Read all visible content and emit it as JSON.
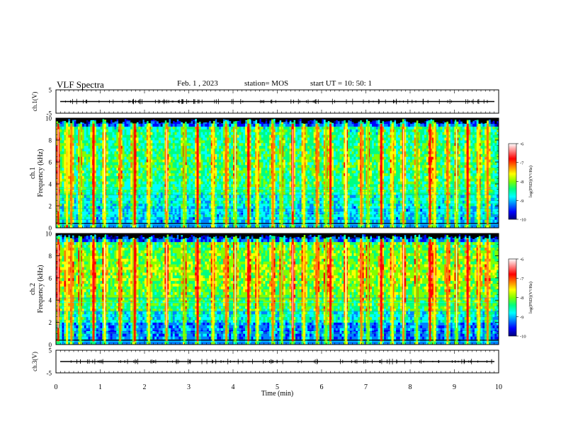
{
  "header": {
    "title": "VLF Spectra",
    "date": "Feb. 1  , 2023",
    "station": "station= MOS",
    "start": "start  UT =   10: 50: 1"
  },
  "colors": {
    "spectrum": [
      "#00007a",
      "#0000ff",
      "#0080ff",
      "#00ffff",
      "#00ff80",
      "#80ff00",
      "#ffff00",
      "#ff8000",
      "#ff0000",
      "#ff8080",
      "#ffffff"
    ]
  },
  "chart_data": [
    {
      "type": "line",
      "panel": "ch1-waveform",
      "ylabel": "ch.1(V)",
      "ylim": [
        -5,
        5
      ],
      "yticks": [
        "5",
        "-5"
      ],
      "series": [
        {
          "values": [
            0
          ]
        }
      ]
    },
    {
      "type": "heatmap",
      "panel": "ch1-spectrogram",
      "ylabel_top": "ch.1",
      "ylabel": "Frequency (kHz)",
      "ylim": [
        0,
        10
      ],
      "yticks": [
        "0",
        "2",
        "4",
        "6",
        "8",
        "10"
      ],
      "burst_times_min": [
        0.05,
        0.25,
        0.35,
        0.55,
        0.85,
        1.1,
        1.45,
        1.75,
        1.78,
        2.1,
        2.5,
        2.9,
        3.2,
        3.55,
        3.85,
        4.05,
        4.35,
        4.55,
        4.9,
        5.1,
        5.35,
        5.6,
        5.9,
        6.1,
        6.2,
        6.55,
        6.9,
        7.05,
        7.35,
        7.6,
        7.85,
        8.15,
        8.45,
        8.55,
        8.85,
        9.05,
        9.3,
        9.55,
        9.75
      ],
      "colorbar": {
        "label": "log(PSD)(V²/Hz)",
        "range": [
          -10,
          -6
        ],
        "ticks": [
          "-6",
          "-7",
          "-8",
          "-9",
          "-10"
        ]
      }
    },
    {
      "type": "heatmap",
      "panel": "ch2-spectrogram",
      "ylabel_top": "ch.2",
      "ylabel": "Frequency (kHz)",
      "ylim": [
        0,
        10
      ],
      "yticks": [
        "0",
        "2",
        "4",
        "6",
        "8",
        "10"
      ],
      "burst_times_min": [
        0.05,
        0.25,
        0.35,
        0.55,
        0.85,
        1.1,
        1.45,
        1.75,
        1.78,
        2.1,
        2.5,
        2.9,
        3.2,
        3.55,
        3.85,
        4.05,
        4.35,
        4.55,
        4.9,
        5.1,
        5.35,
        5.6,
        5.9,
        6.1,
        6.2,
        6.55,
        6.9,
        7.05,
        7.35,
        7.6,
        7.85,
        8.15,
        8.45,
        8.55,
        8.85,
        9.05,
        9.3,
        9.55,
        9.75
      ],
      "colorbar": {
        "label": "log(PSD)(V²/Hz)",
        "range": [
          -10,
          -6
        ],
        "ticks": [
          "-6",
          "-7",
          "-8",
          "-9",
          "-10"
        ]
      }
    },
    {
      "type": "line",
      "panel": "ch3-waveform",
      "ylabel": "ch.3(V)",
      "ylim": [
        -5,
        5
      ],
      "yticks": [
        "5",
        "-5"
      ],
      "series": [
        {
          "values": [
            0
          ]
        }
      ]
    }
  ],
  "xaxis": {
    "label": "Time (min)",
    "xlim": [
      0,
      10
    ],
    "ticks": [
      "0",
      "1",
      "2",
      "3",
      "4",
      "5",
      "6",
      "7",
      "8",
      "9",
      "10"
    ]
  }
}
